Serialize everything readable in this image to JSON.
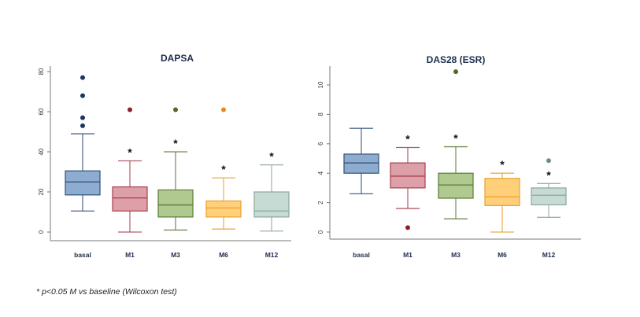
{
  "chart_data": [
    {
      "type": "box",
      "title": "DAPSA",
      "xlabel": "",
      "ylabel": "",
      "ylim": [
        0,
        80
      ],
      "yticks": [
        0,
        20,
        40,
        60,
        80
      ],
      "grid": false,
      "categories": [
        "basal",
        "M1",
        "M3",
        "M6",
        "M12"
      ],
      "boxes": [
        {
          "name": "basal",
          "whisker_low": 10.5,
          "q1": 18.5,
          "median": 25,
          "q3": 30.5,
          "whisker_high": 49,
          "outliers": [
            53,
            57,
            68,
            77
          ],
          "significant": false,
          "color": "#8eaccf",
          "stroke": "#2e4f7a"
        },
        {
          "name": "M1",
          "whisker_low": 0,
          "q1": 10.5,
          "median": 17,
          "q3": 22.5,
          "whisker_high": 35.5,
          "outliers": [
            61
          ],
          "significant": true,
          "color": "#dea0a8",
          "stroke": "#a84050"
        },
        {
          "name": "M3",
          "whisker_low": 1,
          "q1": 7.5,
          "median": 13.5,
          "q3": 21,
          "whisker_high": 40,
          "outliers": [
            61
          ],
          "significant": true,
          "color": "#afc98e",
          "stroke": "#5a7a38"
        },
        {
          "name": "M6",
          "whisker_low": 1.5,
          "q1": 7.5,
          "median": 12,
          "q3": 15.5,
          "whisker_high": 27,
          "outliers": [
            61
          ],
          "significant": true,
          "color": "#ffcf7a",
          "stroke": "#e8a030"
        },
        {
          "name": "M12",
          "whisker_low": 0.5,
          "q1": 7.5,
          "median": 10.5,
          "q3": 20,
          "whisker_high": 33.5,
          "outliers": [],
          "significant": true,
          "color": "#c5dbd3",
          "stroke": "#8aa79c"
        }
      ],
      "outlier_colors": [
        "#1b3561",
        "#8a2232",
        "#4d6a2a",
        "#e88a1a",
        "#6f8f86"
      ]
    },
    {
      "type": "box",
      "title": "DAS28 (ESR)",
      "xlabel": "",
      "ylabel": "",
      "ylim": [
        0,
        11
      ],
      "yticks": [
        0,
        2,
        4,
        6,
        8,
        10
      ],
      "grid": false,
      "categories": [
        "basal",
        "M1",
        "M3",
        "M6",
        "M12"
      ],
      "boxes": [
        {
          "name": "basal",
          "whisker_low": 2.6,
          "q1": 4.0,
          "median": 4.7,
          "q3": 5.3,
          "whisker_high": 7.05,
          "outliers": [],
          "significant": false,
          "color": "#8eaccf",
          "stroke": "#2e4f7a"
        },
        {
          "name": "M1",
          "whisker_low": 1.6,
          "q1": 3.0,
          "median": 3.8,
          "q3": 4.7,
          "whisker_high": 5.75,
          "outliers": [
            0.3
          ],
          "significant": true,
          "color": "#dea0a8",
          "stroke": "#a84050"
        },
        {
          "name": "M3",
          "whisker_low": 0.9,
          "q1": 2.3,
          "median": 3.2,
          "q3": 4.0,
          "whisker_high": 5.8,
          "outliers": [
            10.9
          ],
          "significant": true,
          "color": "#afc98e",
          "stroke": "#5a7a38"
        },
        {
          "name": "M6",
          "whisker_low": 0,
          "q1": 1.8,
          "median": 2.4,
          "q3": 3.65,
          "whisker_high": 4.0,
          "outliers": [],
          "significant": true,
          "color": "#ffcf7a",
          "stroke": "#e8a030"
        },
        {
          "name": "M12",
          "whisker_low": 1.0,
          "q1": 1.85,
          "median": 2.5,
          "q3": 3.0,
          "whisker_high": 3.3,
          "outliers": [
            4.85
          ],
          "significant": true,
          "color": "#c5dbd3",
          "stroke": "#8aa79c"
        }
      ],
      "outlier_colors": [
        "#1b3561",
        "#8a2232",
        "#4d6a2a",
        "#e88a1a",
        "#6f8f86"
      ]
    }
  ],
  "significance_marker": "*",
  "footnote": "*  p<0.05 M vs baseline (Wilcoxon test)"
}
